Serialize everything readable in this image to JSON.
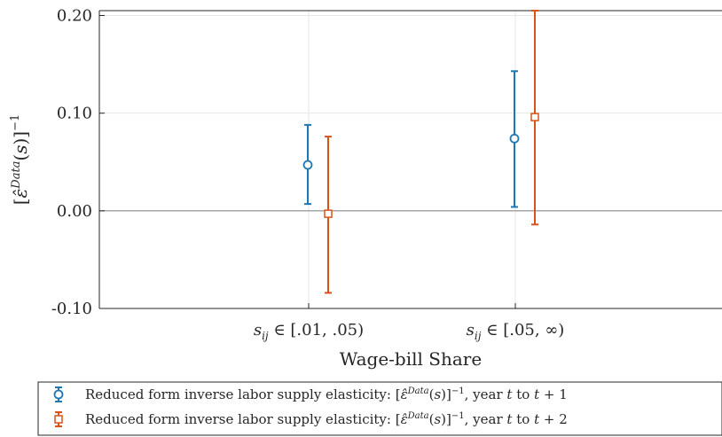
{
  "chart_data": {
    "type": "errorbar",
    "categories": [
      "s_ij ∈ [.01, .05)",
      "s_ij ∈ [.05, ∞)"
    ],
    "xlabel": "Wage-bill Share",
    "ylabel": "[ε̂^Data(s)]^−1",
    "ylim": [
      -0.1,
      0.205
    ],
    "yticks": [
      "-0.10",
      "0.00",
      "0.10",
      "0.20"
    ],
    "grid": true,
    "legend_position": "bottom",
    "series": [
      {
        "name": "Reduced form inverse labor supply elasticity: [ε̂^Data(s)]^−1, year t to t+1",
        "marker": "circle",
        "color": "#1f77b4",
        "values": [
          0.047,
          0.074
        ],
        "lower": [
          0.007,
          0.004
        ],
        "upper": [
          0.088,
          0.143
        ]
      },
      {
        "name": "Reduced form inverse labor supply elasticity: [ε̂^Data(s)]^−1, year t to t+2",
        "marker": "square",
        "color": "#d95319",
        "values": [
          -0.003,
          0.096
        ],
        "lower": [
          -0.084,
          -0.014
        ],
        "upper": [
          0.076,
          0.205
        ]
      }
    ]
  }
}
